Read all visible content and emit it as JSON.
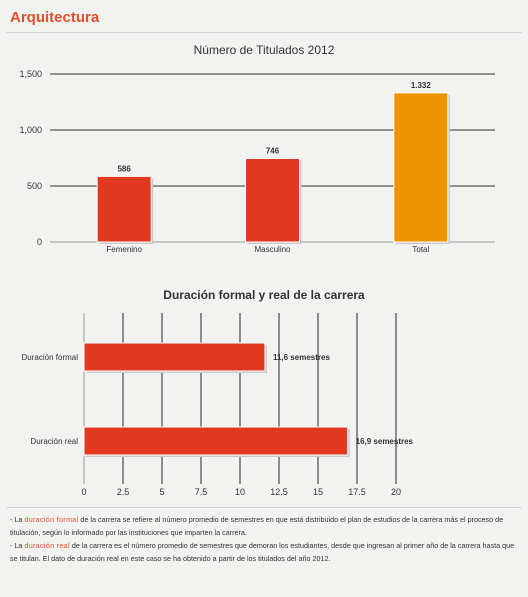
{
  "page": {
    "title": "Arquitectura"
  },
  "chart_data": [
    {
      "type": "bar",
      "title": "Número de Titulados 2012",
      "categories": [
        "Femenino",
        "Masculino",
        "Total"
      ],
      "values": [
        586,
        746,
        1332
      ],
      "value_labels": [
        "586",
        "746",
        "1.332"
      ],
      "colors": [
        "#e1381f",
        "#e1381f",
        "#ef9400"
      ],
      "ylim": [
        0,
        1500
      ],
      "ytick_values": [
        0,
        500,
        1000,
        1500
      ],
      "ytick_labels": [
        "0",
        "500",
        "1,000",
        "1,500"
      ],
      "grid": true
    },
    {
      "type": "bar",
      "orientation": "horizontal",
      "title": "Duración formal y real de la carrera",
      "categories": [
        "Duración formal",
        "Duración real"
      ],
      "values": [
        11.6,
        16.9
      ],
      "value_labels": [
        "11,6 semestres",
        "16,9 semestres"
      ],
      "colors": [
        "#e1381f",
        "#e1381f"
      ],
      "xlim": [
        0,
        20
      ],
      "xtick_values": [
        0,
        2.5,
        5,
        7.5,
        10,
        12.5,
        15,
        17.5,
        20
      ],
      "xtick_labels": [
        "0",
        "2.5",
        "5",
        "7.5",
        "10",
        "12.5",
        "15",
        "17.5",
        "20"
      ],
      "grid": true
    }
  ],
  "notes": [
    {
      "prefix": "- La ",
      "highlight": "duración formal",
      "text": " de la carrera se refiere al número promedio de semestres en que está distribuido el plan de estudios de la carrera más el proceso de titulación, según lo informado por las instituciones que imparten la carrera."
    },
    {
      "prefix": "- La ",
      "highlight": "duración real",
      "text": " de la carrera es el número promedio de semestres que demoran los estudiantes, desde que ingresan al primer año de la carrera hasta que se titulan. El dato de duración real en este caso se ha obtenido a partir de los titulados del año 2012."
    }
  ]
}
